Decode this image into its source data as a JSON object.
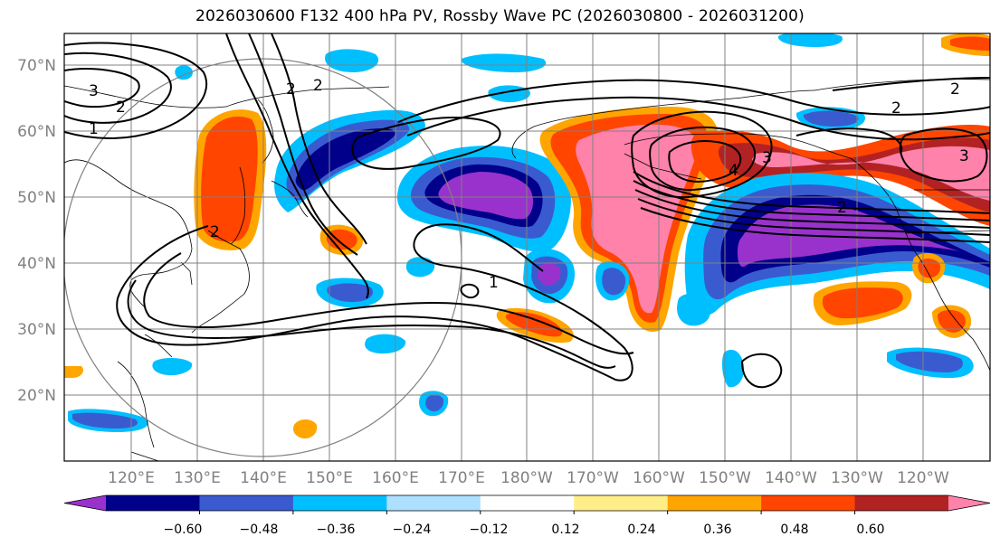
{
  "title": "2026030600 F132 400 hPa PV, Rossby Wave PC (2026030800 - 2026031200)",
  "lat_labels": [
    "70°N",
    "60°N",
    "50°N",
    "40°N",
    "30°N",
    "20°N"
  ],
  "lon_labels": [
    "120°E",
    "130°E",
    "140°E",
    "150°E",
    "160°E",
    "170°E",
    "180°W",
    "170°W",
    "160°W",
    "150°W",
    "140°W",
    "130°W",
    "120°W"
  ],
  "contour_labels": [
    "3",
    "2",
    "1",
    "2",
    "2",
    "2",
    "1",
    "3",
    "4",
    "2",
    "2",
    "2",
    "3"
  ],
  "colorbar": {
    "ticks": [
      "−0.60",
      "−0.48",
      "−0.36",
      "−0.24",
      "−0.12",
      "0.12",
      "0.24",
      "0.36",
      "0.48",
      "0.60"
    ],
    "colors": [
      "#9932CC",
      "#00008B",
      "#3A5BD0",
      "#00BFFF",
      "#ADDFFF",
      "#FFFFFF",
      "#FFEE88",
      "#FFA500",
      "#FF4500",
      "#B22222",
      "#FF82AB"
    ]
  }
}
